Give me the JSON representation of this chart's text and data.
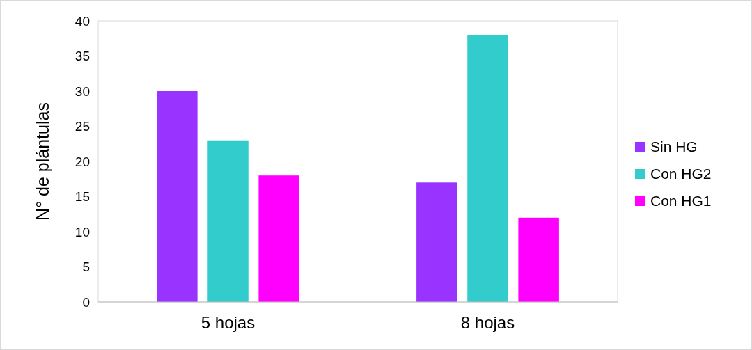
{
  "chart_data": {
    "type": "bar",
    "ylabel": "N° de plántulas",
    "categories": [
      "5 hojas",
      "8 hojas"
    ],
    "series": [
      {
        "name": "Sin HG",
        "color": "#9933ff",
        "values": [
          30,
          17
        ]
      },
      {
        "name": "Con HG2",
        "color": "#33cccc",
        "values": [
          23,
          38
        ]
      },
      {
        "name": "Con HG1",
        "color": "#ff00ff",
        "values": [
          18,
          12
        ]
      }
    ],
    "ylim": [
      0,
      40
    ],
    "yticks": [
      0,
      5,
      10,
      15,
      20,
      25,
      30,
      35,
      40
    ],
    "grid": false,
    "legend": "right"
  }
}
